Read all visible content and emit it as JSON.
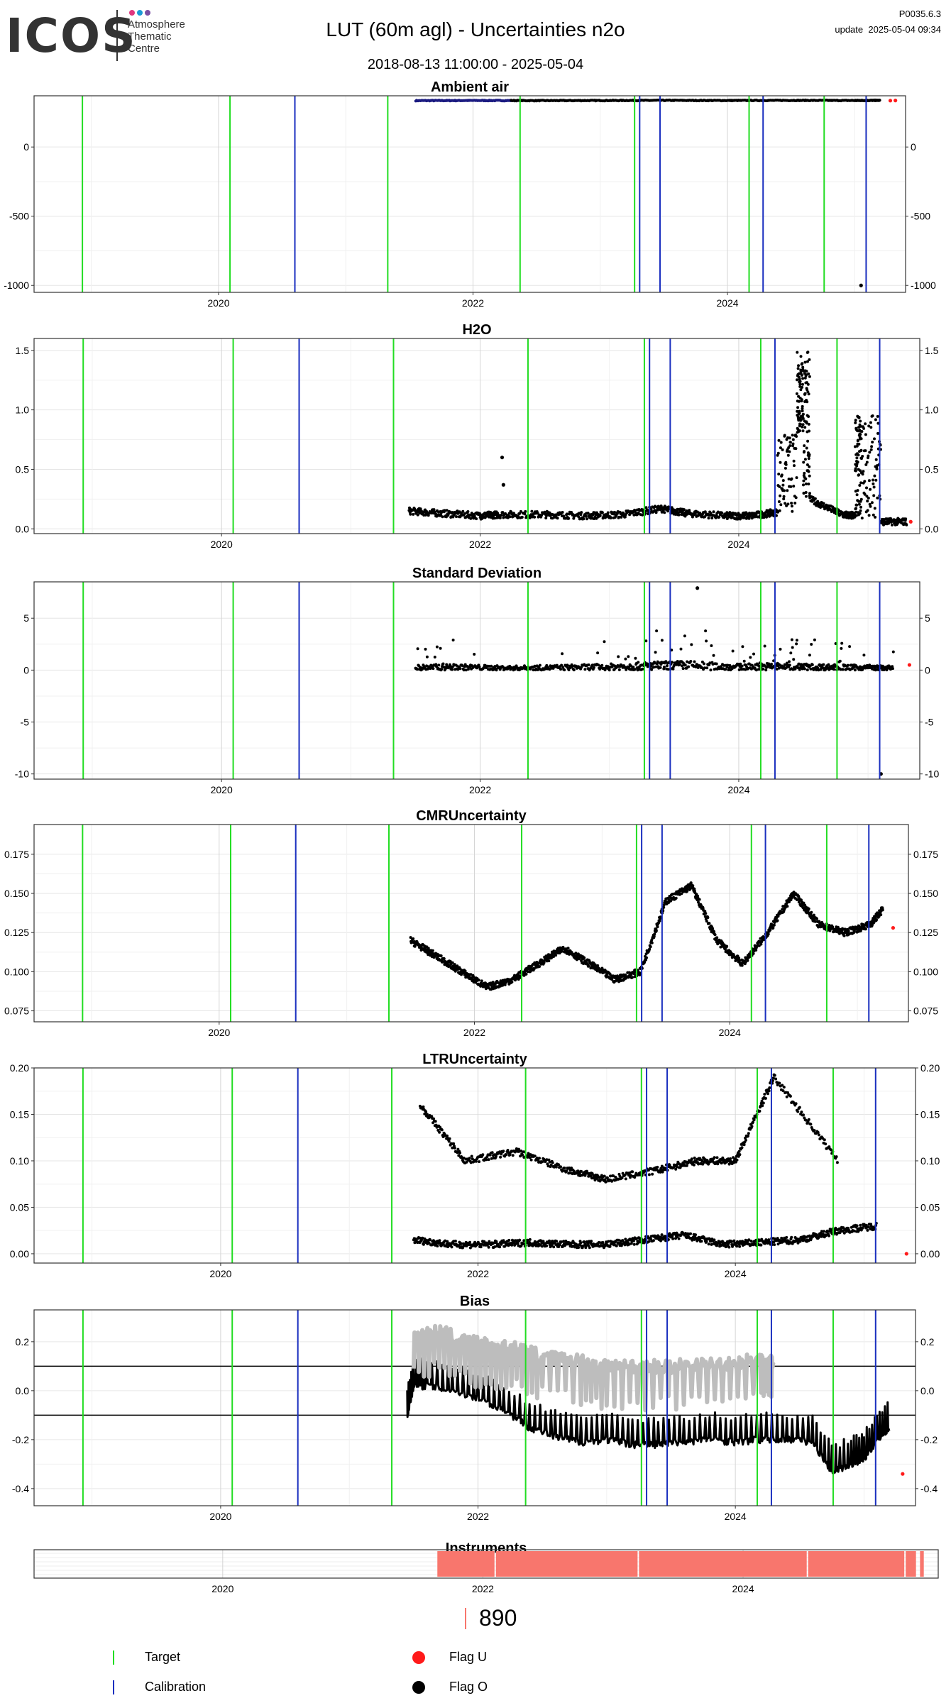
{
  "header": {
    "logo_text": "ICOS",
    "logo_sub": [
      "Atmosphere",
      "Thematic",
      "Centre"
    ],
    "title": "LUT  (60m agl) - Uncertainties n2o",
    "date_range": "2018-08-13 11:00:00 - 2025-05-04",
    "version": "P0035.6.3",
    "update": "update  2025-05-04 09:34"
  },
  "colors": {
    "target": "#22dd22",
    "calibration": "#1a2fbf",
    "flag_U": "#ff1a1a",
    "flag_O": "#000000",
    "instrument": "#f8766d",
    "grid": "#e6e6e6",
    "bias_gray": "#bdbdbd"
  },
  "target_lines": [
    2018.93,
    2020.09,
    2021.33,
    2022.37,
    2023.27,
    2024.17,
    2024.76
  ],
  "calibration_lines": [
    2020.6,
    2023.31,
    2023.47,
    2024.28,
    2025.09
  ],
  "chart_data": [
    {
      "type": "scatter",
      "title": "Ambient air",
      "xlim": [
        2018.55,
        2025.4
      ],
      "ylim": [
        -1050,
        370
      ],
      "yticks": [
        0,
        -500,
        -1000
      ],
      "ytick_labels": [
        "0",
        "-500",
        "-1000"
      ],
      "xticks": [
        2020,
        2022,
        2024
      ],
      "xtick_labels": [
        "2020",
        "2022",
        "2024"
      ],
      "series": [
        {
          "flag": "O",
          "x": [
            2021.55,
            2022.0,
            2022.5,
            2023.0,
            2023.5,
            2024.0,
            2024.5,
            2025.0,
            2025.2
          ],
          "y": [
            335,
            336,
            335,
            336,
            337,
            336,
            337,
            336,
            337
          ]
        },
        {
          "flag": "O",
          "x": [
            2025.05
          ],
          "y": [
            -1000
          ]
        },
        {
          "flag": "U",
          "x": [
            2025.28,
            2025.32
          ],
          "y": [
            335,
            336
          ]
        }
      ]
    },
    {
      "type": "scatter",
      "title": "H2O",
      "xlim": [
        2018.55,
        2025.4
      ],
      "ylim": [
        -0.04,
        1.6
      ],
      "yticks": [
        0.0,
        0.5,
        1.0,
        1.5
      ],
      "ytick_labels": [
        "0.0",
        "0.5",
        "1.0",
        "1.5"
      ],
      "xticks": [
        2020,
        2022,
        2024
      ],
      "xtick_labels": [
        "2020",
        "2022",
        "2024"
      ],
      "series": [
        {
          "flag": "O",
          "x": [
            2021.45,
            2021.7,
            2022.0,
            2022.15,
            2022.5,
            2022.8,
            2023.1,
            2023.4,
            2023.6,
            2023.9,
            2024.1,
            2024.3,
            2024.45,
            2024.5,
            2024.55,
            2024.8,
            2024.9,
            2024.95,
            2025.1,
            2025.3
          ],
          "y": [
            0.15,
            0.13,
            0.11,
            0.12,
            0.12,
            0.11,
            0.12,
            0.17,
            0.13,
            0.11,
            0.11,
            0.14,
            0.8,
            1.5,
            0.25,
            0.12,
            0.11,
            0.95,
            0.06,
            0.06
          ]
        },
        {
          "flag": "O",
          "x": [
            2022.17,
            2022.18
          ],
          "y": [
            0.6,
            0.37
          ]
        },
        {
          "flag": "U",
          "x": [
            2025.33
          ],
          "y": [
            0.06
          ]
        }
      ]
    },
    {
      "type": "scatter",
      "title": "Standard Deviation",
      "xlim": [
        2018.55,
        2025.4
      ],
      "ylim": [
        -10.5,
        8.5
      ],
      "yticks": [
        5,
        0,
        -5,
        -10
      ],
      "ytick_labels": [
        "5",
        "0",
        "-5",
        "-10"
      ],
      "xticks": [
        2020,
        2022,
        2024
      ],
      "xtick_labels": [
        "2020",
        "2022",
        "2024"
      ],
      "series": [
        {
          "flag": "O",
          "x": [
            2021.5,
            2021.8,
            2022.2,
            2022.6,
            2023.0,
            2023.3,
            2023.6,
            2024.0,
            2024.3,
            2024.6,
            2024.9,
            2025.2
          ],
          "y": [
            0.5,
            0.6,
            0.4,
            0.5,
            0.6,
            0.8,
            0.9,
            0.6,
            0.7,
            0.6,
            0.5,
            0.4
          ]
        },
        {
          "flag": "O",
          "x": [
            2023.68,
            2025.1
          ],
          "y": [
            7.9,
            -10
          ]
        },
        {
          "flag": "U",
          "x": [
            2025.32
          ],
          "y": [
            0.5
          ]
        }
      ]
    },
    {
      "type": "scatter",
      "title": "CMRUncertainty",
      "xlim": [
        2018.55,
        2025.4
      ],
      "ylim": [
        0.068,
        0.194
      ],
      "yticks": [
        0.075,
        0.1,
        0.125,
        0.15,
        0.175
      ],
      "ytick_labels": [
        "0.075",
        "0.100",
        "0.125",
        "0.150",
        "0.175"
      ],
      "xticks": [
        2020,
        2022,
        2024
      ],
      "xtick_labels": [
        "2020",
        "2022",
        "2024"
      ],
      "series": [
        {
          "flag": "O",
          "x": [
            2021.5,
            2021.7,
            2021.9,
            2022.1,
            2022.3,
            2022.5,
            2022.7,
            2022.9,
            2023.1,
            2023.3,
            2023.5,
            2023.7,
            2023.9,
            2024.1,
            2024.3,
            2024.5,
            2024.7,
            2024.9,
            2025.1,
            2025.2
          ],
          "y": [
            0.12,
            0.11,
            0.1,
            0.09,
            0.095,
            0.105,
            0.115,
            0.105,
            0.095,
            0.1,
            0.145,
            0.155,
            0.12,
            0.105,
            0.125,
            0.15,
            0.13,
            0.125,
            0.13,
            0.14
          ]
        },
        {
          "flag": "U",
          "x": [
            2025.28
          ],
          "y": [
            0.128
          ]
        }
      ]
    },
    {
      "type": "scatter",
      "title": "LTRUncertainty",
      "xlim": [
        2018.55,
        2025.4
      ],
      "ylim": [
        -0.01,
        0.2
      ],
      "yticks": [
        0.0,
        0.05,
        0.1,
        0.15,
        0.2
      ],
      "ytick_labels": [
        "0.00",
        "0.05",
        "0.10",
        "0.15",
        "0.20"
      ],
      "xticks": [
        2020,
        2022,
        2024
      ],
      "xtick_labels": [
        "2020",
        "2022",
        "2024"
      ],
      "series": [
        {
          "flag": "O",
          "x": [
            2021.5,
            2021.8,
            2022.1,
            2022.4,
            2022.7,
            2023.0,
            2023.3,
            2023.6,
            2023.9,
            2024.2,
            2024.5,
            2024.8,
            2025.1
          ],
          "y": [
            0.015,
            0.01,
            0.01,
            0.012,
            0.01,
            0.01,
            0.015,
            0.02,
            0.01,
            0.012,
            0.015,
            0.025,
            0.03
          ]
        },
        {
          "flag": "O",
          "x": [
            2021.55,
            2021.9,
            2022.3,
            2022.7,
            2023.0,
            2023.4,
            2023.7,
            2024.0,
            2024.3,
            2024.8
          ],
          "y": [
            0.16,
            0.1,
            0.11,
            0.09,
            0.08,
            0.09,
            0.1,
            0.1,
            0.19,
            0.1
          ]
        },
        {
          "flag": "U",
          "x": [
            2025.33
          ],
          "y": [
            0.0
          ]
        }
      ]
    },
    {
      "type": "line",
      "title": "Bias",
      "xlim": [
        2018.55,
        2025.4
      ],
      "ylim": [
        -0.47,
        0.33
      ],
      "yticks": [
        0.2,
        0.0,
        -0.2,
        -0.4
      ],
      "ytick_labels": [
        "0.2",
        "0.0",
        "-0.2",
        "-0.4"
      ],
      "xticks": [
        2020,
        2022,
        2024
      ],
      "xtick_labels": [
        "2020",
        "2022",
        "2024"
      ],
      "hlines": [
        0.1,
        -0.1
      ],
      "series": [
        {
          "flag": "O",
          "x": [
            2021.45,
            2021.5,
            2021.6,
            2021.8,
            2022.0,
            2022.2,
            2022.4,
            2022.6,
            2022.8,
            2023.0,
            2023.2,
            2023.4,
            2023.6,
            2023.8,
            2024.0,
            2024.2,
            2024.4,
            2024.6,
            2024.75,
            2024.9,
            2025.0,
            2025.1,
            2025.2
          ],
          "y": [
            -0.1,
            0.02,
            0.02,
            0.0,
            -0.03,
            -0.08,
            -0.15,
            -0.19,
            -0.21,
            -0.2,
            -0.22,
            -0.22,
            -0.21,
            -0.2,
            -0.21,
            -0.2,
            -0.2,
            -0.21,
            -0.33,
            -0.3,
            -0.28,
            -0.2,
            -0.15
          ]
        },
        {
          "flag": "gray",
          "x": [
            2021.5,
            2021.7,
            2021.9,
            2022.1,
            2022.3,
            2022.5,
            2022.8,
            2023.0,
            2023.3,
            2023.6,
            2023.9,
            2024.2,
            2024.3
          ],
          "y": [
            0.22,
            0.24,
            0.2,
            0.18,
            0.17,
            0.14,
            0.12,
            0.1,
            0.1,
            0.1,
            0.11,
            0.13,
            0.12
          ]
        },
        {
          "flag": "U",
          "x": [
            2025.3
          ],
          "y": [
            -0.34
          ]
        }
      ]
    }
  ],
  "instruments": {
    "title": "Instruments",
    "xlim": [
      2018.55,
      2025.5
    ],
    "xticks": [
      2020,
      2022,
      2024
    ],
    "xtick_labels": [
      "2020",
      "2022",
      "2024"
    ],
    "segments": [
      [
        2021.65,
        2022.1
      ],
      [
        2022.1,
        2023.2
      ],
      [
        2023.2,
        2024.5
      ],
      [
        2024.5,
        2025.25
      ],
      [
        2025.25,
        2025.34
      ],
      [
        2025.36,
        2025.4
      ]
    ],
    "label": "890"
  },
  "legend": {
    "target": "Target",
    "calibration": "Calibration",
    "flag_u": "Flag U",
    "flag_o": "Flag O"
  }
}
